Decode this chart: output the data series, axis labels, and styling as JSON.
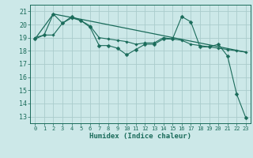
{
  "title": "",
  "xlabel": "Humidex (Indice chaleur)",
  "bg_color": "#cce8e8",
  "grid_color": "#aacccc",
  "line_color": "#1a6b5a",
  "xlim": [
    -0.5,
    23.5
  ],
  "ylim": [
    12.5,
    21.5
  ],
  "xticks": [
    0,
    1,
    2,
    3,
    4,
    5,
    6,
    7,
    8,
    9,
    10,
    11,
    12,
    13,
    14,
    15,
    16,
    17,
    18,
    19,
    20,
    21,
    22,
    23
  ],
  "yticks": [
    13,
    14,
    15,
    16,
    17,
    18,
    19,
    20,
    21
  ],
  "series1_x": [
    0,
    1,
    2,
    3,
    4,
    5,
    6,
    7,
    8,
    9,
    10,
    11,
    12,
    13,
    14,
    15,
    16,
    17,
    18,
    19,
    20,
    21,
    22,
    23
  ],
  "series1_y": [
    18.9,
    19.2,
    20.8,
    20.1,
    20.6,
    20.3,
    19.8,
    18.4,
    18.4,
    18.2,
    17.7,
    18.1,
    18.5,
    18.5,
    18.9,
    18.9,
    20.6,
    20.2,
    18.3,
    18.3,
    18.5,
    17.6,
    14.7,
    12.9
  ],
  "series2_x": [
    0,
    2,
    5,
    23
  ],
  "series2_y": [
    18.9,
    20.8,
    20.4,
    17.9
  ],
  "series3_x": [
    0,
    1,
    2,
    3,
    4,
    5,
    6,
    7,
    8,
    9,
    10,
    11,
    12,
    13,
    14,
    15,
    16,
    17,
    18,
    19,
    20,
    21,
    22,
    23
  ],
  "series3_y": [
    19.0,
    19.2,
    19.2,
    20.1,
    20.5,
    20.3,
    19.9,
    19.0,
    18.9,
    18.8,
    18.7,
    18.5,
    18.6,
    18.6,
    19.0,
    18.9,
    18.8,
    18.5,
    18.4,
    18.3,
    18.2,
    18.1,
    18.0,
    17.9
  ]
}
